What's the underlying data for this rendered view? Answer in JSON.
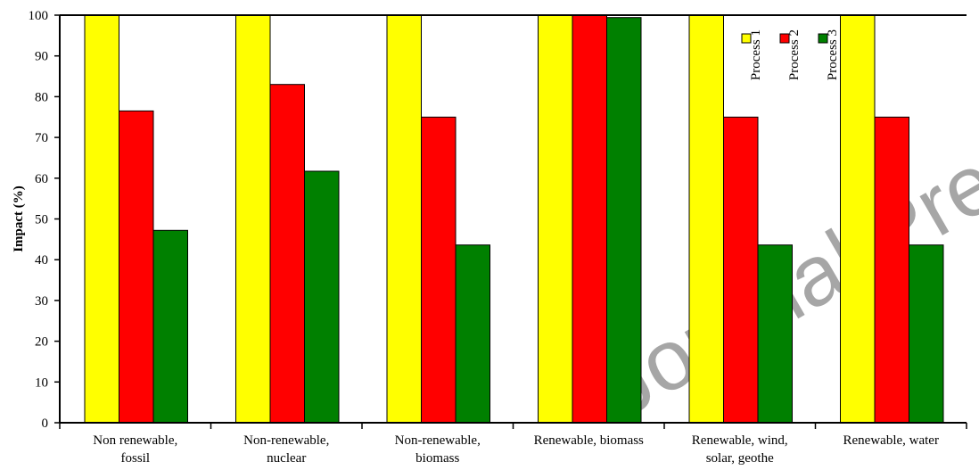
{
  "chart_data": {
    "type": "bar",
    "title": "",
    "xlabel": "",
    "ylabel": "Impact (%)",
    "ylim": [
      0,
      100
    ],
    "yticks": [
      "0",
      "10",
      "20",
      "30",
      "40",
      "50",
      "60",
      "70",
      "80",
      "90",
      "100"
    ],
    "categories": [
      [
        "Non renewable,",
        "fossil"
      ],
      [
        "Non-renewable,",
        "nuclear"
      ],
      [
        "Non-renewable,",
        "biomass"
      ],
      [
        "Renewable, biomass"
      ],
      [
        "Renewable, wind,",
        "solar, geothe"
      ],
      [
        "Renewable, water"
      ]
    ],
    "series": [
      {
        "name": "Process 1",
        "color": "#ffff00",
        "values": [
          100,
          100,
          100,
          100,
          100,
          100
        ]
      },
      {
        "name": "Process 2",
        "color": "#ff0000",
        "values": [
          76.5,
          83,
          75,
          100,
          75,
          75
        ]
      },
      {
        "name": "Process 3",
        "color": "#008000",
        "values": [
          47.2,
          61.7,
          43.6,
          99.4,
          43.6,
          43.6
        ]
      }
    ],
    "grid": false,
    "legend_position": "top-right, vertical labels",
    "watermark": "Journal Pre-proof"
  }
}
